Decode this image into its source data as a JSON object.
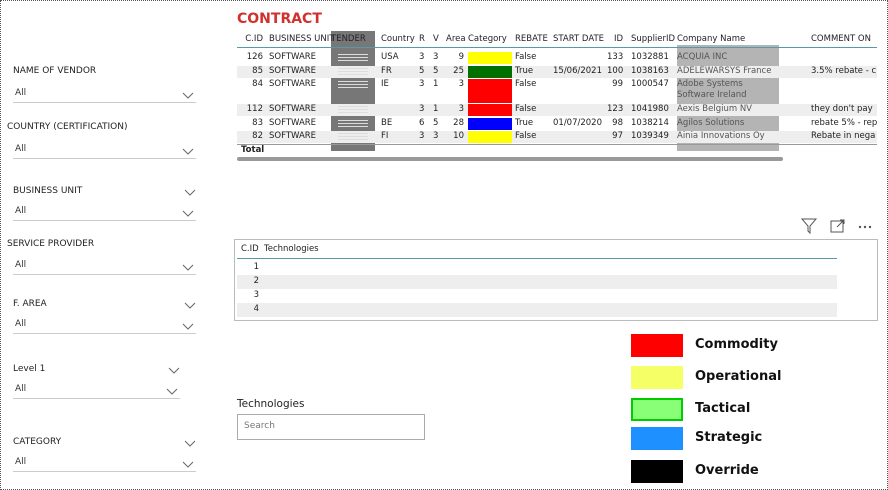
{
  "slicers": [
    {
      "label": "NAME OF VENDOR",
      "value": "All"
    },
    {
      "label": "COUNTRY (CERTIFICATION)",
      "value": "All"
    },
    {
      "label": "BUSINESS UNIT",
      "value": "All"
    },
    {
      "label": "SERVICE PROVIDER",
      "value": "All"
    },
    {
      "label": "F. AREA",
      "value": "All"
    },
    {
      "label": "Level 1",
      "value": "All"
    },
    {
      "label": "CATEGORY",
      "value": "All"
    }
  ],
  "contract": {
    "title": "CONTRACT",
    "columns": [
      "C.ID",
      "BUSINESS UNIT",
      "TENDER",
      "Country",
      "R",
      "V",
      "Area",
      "Category",
      "REBATE",
      "START DATE",
      "ID",
      "SupplierID",
      "Company Name",
      "COMMENT ON"
    ],
    "rows": [
      {
        "cells": [
          126,
          "SOFTWARE",
          null,
          "USA",
          3,
          3,
          9,
          null,
          "False",
          null,
          133,
          1032881,
          "ACQUIA INC",
          null
        ],
        "category_color": "#ffff00"
      },
      {
        "cells": [
          85,
          "SOFTWARE",
          null,
          "FR",
          5,
          5,
          25,
          null,
          "True",
          "15/06/2021",
          100,
          1038163,
          "ADELEWARSYS France",
          "3.5% rebate - c"
        ],
        "category_color": "#007000"
      },
      {
        "cells": [
          84,
          "SOFTWARE",
          null,
          "IE",
          3,
          1,
          3,
          null,
          "False",
          null,
          99,
          1000547,
          "Adobe Systems Software Ireland",
          null
        ],
        "category_color": "#ff0000"
      },
      {
        "cells": [
          112,
          "SOFTWARE",
          null,
          null,
          3,
          1,
          3,
          null,
          "False",
          null,
          123,
          1041980,
          "Aexis Belgium NV",
          "they don't pay"
        ],
        "category_color": "#ff0000"
      },
      {
        "cells": [
          83,
          "SOFTWARE",
          null,
          "BE",
          6,
          5,
          28,
          null,
          "True",
          "01/07/2020",
          98,
          1038214,
          "Agilos Solutions",
          "rebate 5% - rep"
        ],
        "category_color": "#0000ff"
      },
      {
        "cells": [
          82,
          "SOFTWARE",
          null,
          "FI",
          3,
          3,
          10,
          null,
          "False",
          null,
          97,
          1039349,
          "Ainia Innovations Oy",
          "Rebate in nega"
        ],
        "category_color": "#ffff00"
      }
    ],
    "total_label": "Total"
  },
  "technologies_table": {
    "columns": [
      "C.ID",
      "Technologies"
    ],
    "rows": [
      1,
      2,
      3,
      4
    ]
  },
  "search": {
    "title": "Technologies",
    "placeholder": "Search"
  },
  "legend": [
    {
      "label": "Commodity",
      "color": "#ff0000"
    },
    {
      "label": "Operational",
      "color": "#f5ff66"
    },
    {
      "label": "Tactical",
      "color": "#88ff77"
    },
    {
      "label": "Strategic",
      "color": "#1e90ff"
    },
    {
      "label": "Override",
      "color": "#000000"
    }
  ]
}
